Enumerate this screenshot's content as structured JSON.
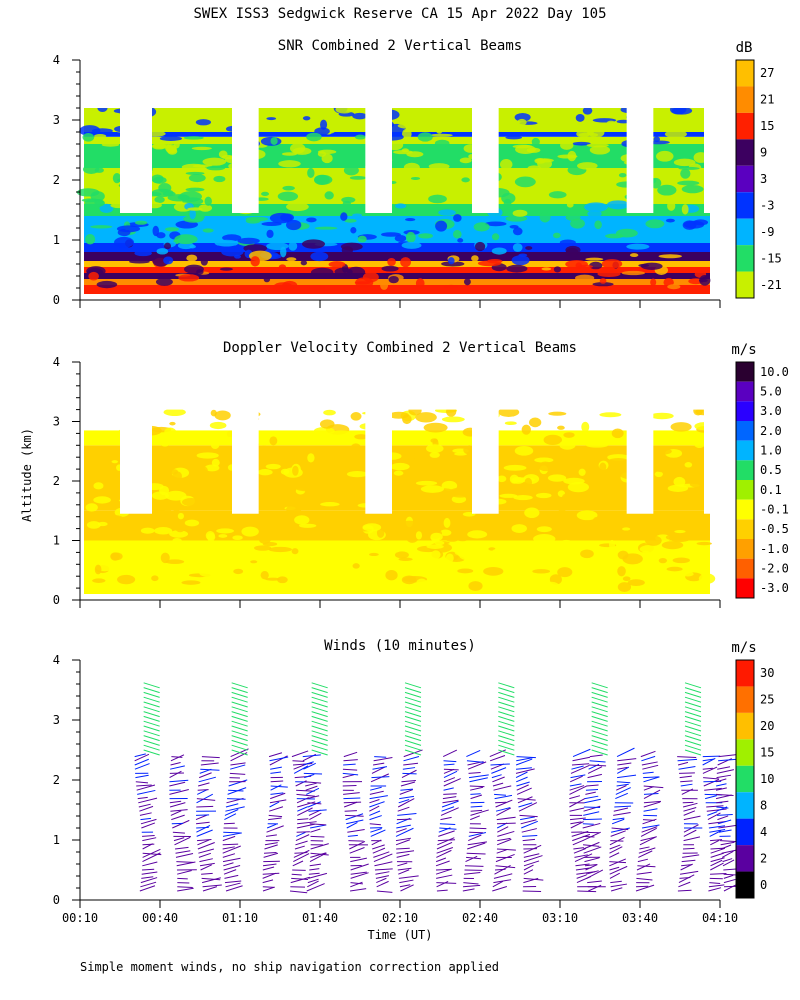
{
  "page": {
    "title": "SWEX ISS3 Sedgwick Reserve CA  15 Apr 2022 Day 105",
    "ylabel_shared": "Altitude (km)",
    "xlabel": "Time (UT)",
    "footnote": "Simple moment winds, no ship navigation correction applied"
  },
  "chart_data": [
    {
      "type": "heatmap",
      "title": "SNR Combined 2 Vertical Beams",
      "units": "dB",
      "ylim": [
        0,
        4
      ],
      "yticks": [
        "0",
        "1",
        "2",
        "3",
        "4"
      ],
      "time_range": [
        "00:10",
        "04:10"
      ],
      "colorbar_labels": [
        "27",
        "21",
        "15",
        "9",
        "3",
        "-3",
        "-9",
        "-15",
        "-21"
      ],
      "colorbar_colors": [
        "#ffbf00",
        "#ff8c00",
        "#ff2000",
        "#3c0060",
        "#5a00c0",
        "#0033ff",
        "#00b4ff",
        "#22dd66",
        "#c8f000"
      ],
      "layers": [
        {
          "from": 0.1,
          "to": 0.25,
          "color": "#ff2000"
        },
        {
          "from": 0.25,
          "to": 0.35,
          "color": "#ff8c00"
        },
        {
          "from": 0.35,
          "to": 0.45,
          "color": "#3c0060"
        },
        {
          "from": 0.45,
          "to": 0.55,
          "color": "#ff2000"
        },
        {
          "from": 0.55,
          "to": 0.65,
          "color": "#ffbf00"
        },
        {
          "from": 0.65,
          "to": 0.8,
          "color": "#3c0060"
        },
        {
          "from": 0.8,
          "to": 0.95,
          "color": "#0033ff"
        },
        {
          "from": 0.95,
          "to": 1.4,
          "color": "#00b4ff"
        },
        {
          "from": 1.4,
          "to": 1.6,
          "color": "#22dd66"
        },
        {
          "from": 1.6,
          "to": 2.2,
          "color": "#c8f000"
        },
        {
          "from": 2.2,
          "to": 2.6,
          "color": "#22dd66"
        },
        {
          "from": 2.6,
          "to": 2.72,
          "color": "#c8f000"
        },
        {
          "from": 2.72,
          "to": 2.8,
          "color": "#0033ff"
        },
        {
          "from": 2.8,
          "to": 3.2,
          "color": "#c8f000"
        }
      ]
    },
    {
      "type": "heatmap",
      "title": "Doppler Velocity Combined 2 Vertical Beams",
      "units": "m/s",
      "ylim": [
        0,
        4
      ],
      "yticks": [
        "0",
        "1",
        "2",
        "3",
        "4"
      ],
      "time_range": [
        "00:10",
        "04:10"
      ],
      "colorbar_labels": [
        "10.0",
        "5.0",
        "3.0",
        "2.0",
        "1.0",
        "0.5",
        "0.1",
        "-0.1",
        "-0.5",
        "-1.0",
        "-2.0",
        "-3.0"
      ],
      "colorbar_colors": [
        "#2a0030",
        "#5a00c0",
        "#2a00ff",
        "#0066ff",
        "#00b4ff",
        "#22dd66",
        "#a0f000",
        "#ffff00",
        "#ffd000",
        "#ffa000",
        "#ff6000",
        "#ff0000"
      ],
      "layers": [
        {
          "from": 0.1,
          "to": 1.0,
          "color": "#ffff00"
        },
        {
          "from": 1.0,
          "to": 1.5,
          "color": "#ffd000"
        },
        {
          "from": 1.5,
          "to": 2.6,
          "color": "#ffd000"
        },
        {
          "from": 2.6,
          "to": 2.85,
          "color": "#ffff00"
        }
      ]
    },
    {
      "type": "scatter",
      "title": "Winds (10 minutes)",
      "units": "m/s",
      "ylim": [
        0,
        4
      ],
      "yticks": [
        "0",
        "1",
        "2",
        "3",
        "4"
      ],
      "xticks": [
        "00:10",
        "00:40",
        "01:10",
        "01:40",
        "02:10",
        "02:40",
        "03:10",
        "03:40",
        "04:10"
      ],
      "colorbar_labels": [
        "30",
        "25",
        "20",
        "15",
        "10",
        "8",
        "4",
        "2",
        "0"
      ],
      "colorbar_colors": [
        "#ff1a00",
        "#ff7000",
        "#ffbf00",
        "#a0f000",
        "#22dd66",
        "#00b4ff",
        "#0022ff",
        "#5a00a0",
        "#000000"
      ],
      "profile_times_min": [
        22,
        35,
        45,
        55,
        70,
        80,
        85,
        100,
        110,
        120,
        135,
        145,
        155,
        165,
        185,
        190,
        200,
        210,
        225,
        235,
        240
      ],
      "wind_barbs": {
        "low_speed_mps": 4,
        "mid_speed_mps": 8,
        "high_speed_mps": 20,
        "low_color": "#5a00a0",
        "mid_color": "#0022ff",
        "high_color": "#22dd66"
      }
    }
  ]
}
